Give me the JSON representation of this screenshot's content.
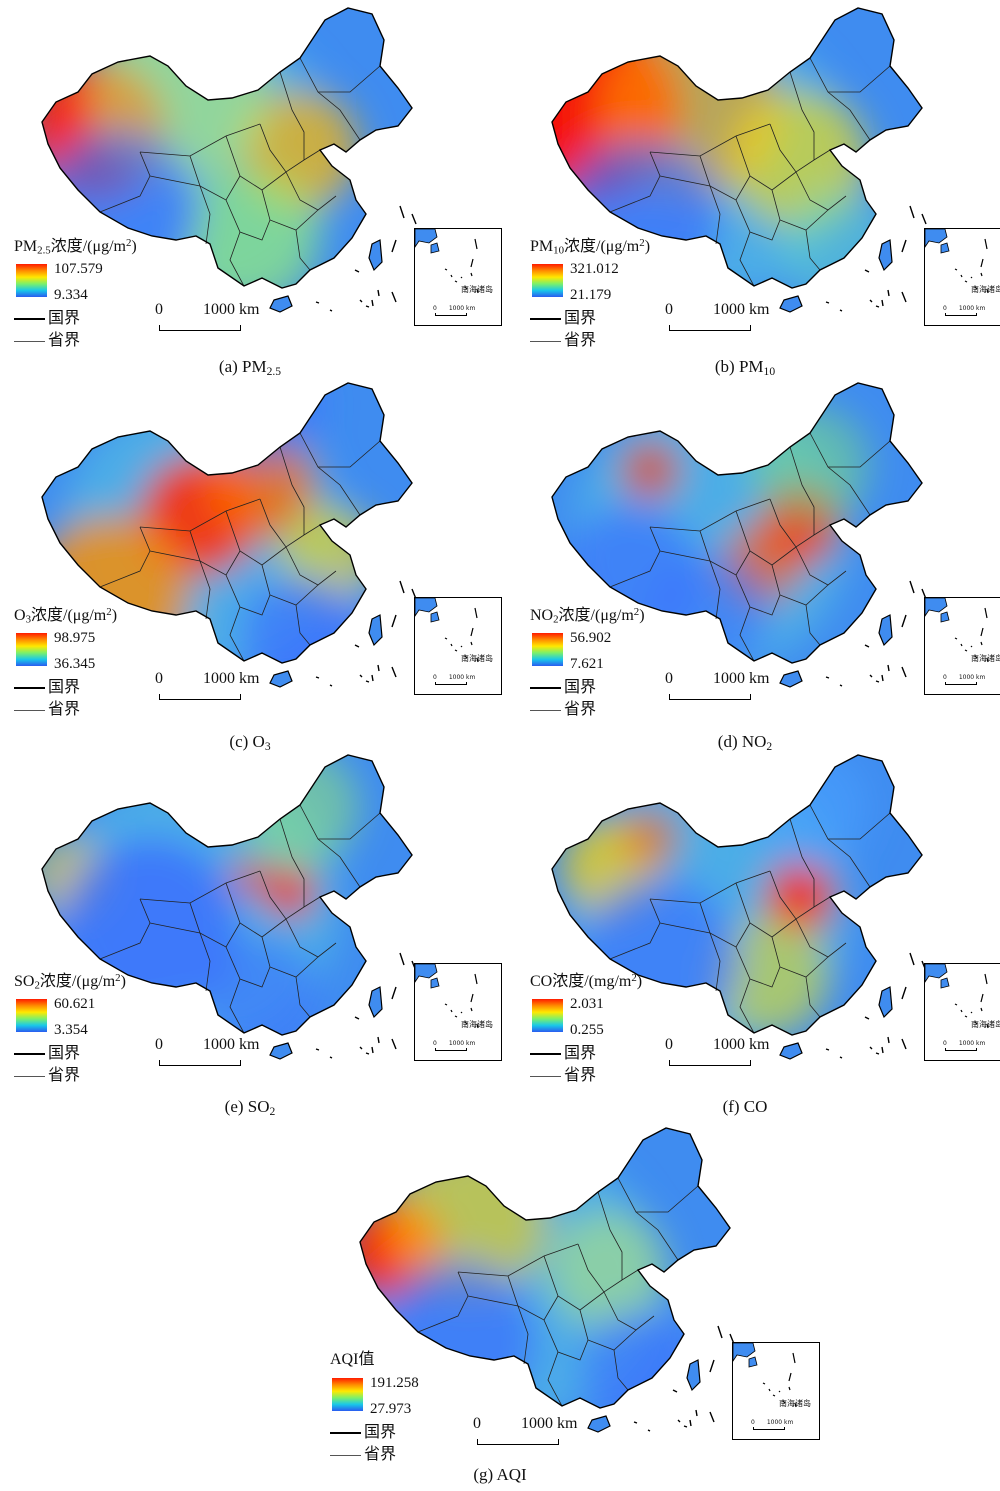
{
  "color_ramp": [
    "#ff1a00",
    "#ff8a00",
    "#ffe800",
    "#7cf06a",
    "#19c8e8",
    "#2a5cf0"
  ],
  "legend_lines": {
    "national": "国界",
    "provincial": "省界"
  },
  "scale": {
    "zero": "0",
    "label": "1000 km"
  },
  "inset": {
    "label": "南海诸岛",
    "scale_zero": "0",
    "scale_label": "1000 km"
  },
  "panels": [
    {
      "id": "pm25",
      "title_main": "PM",
      "title_sub": "2.5",
      "title_unit": "浓度/(μg/m",
      "title_sup": "2",
      "title_close": ")",
      "max": "107.579",
      "min": "9.334",
      "caption_pre": "(a) PM",
      "caption_sub": "2.5",
      "caption_suf": ""
    },
    {
      "id": "pm10",
      "title_main": "PM",
      "title_sub": "10",
      "title_unit": "浓度/(μg/m",
      "title_sup": "2",
      "title_close": ")",
      "max": "321.012",
      "min": "21.179",
      "caption_pre": "(b) PM",
      "caption_sub": "10",
      "caption_suf": ""
    },
    {
      "id": "o3",
      "title_main": "O",
      "title_sub": "3",
      "title_unit": "浓度/(μg/m",
      "title_sup": "2",
      "title_close": ")",
      "max": "98.975",
      "min": "36.345",
      "caption_pre": "(c) O",
      "caption_sub": "3",
      "caption_suf": ""
    },
    {
      "id": "no2",
      "title_main": "NO",
      "title_sub": "2",
      "title_unit": "浓度/(μg/m",
      "title_sup": "2",
      "title_close": ")",
      "max": "56.902",
      "min": "7.621",
      "caption_pre": "(d) NO",
      "caption_sub": "2",
      "caption_suf": ""
    },
    {
      "id": "so2",
      "title_main": "SO",
      "title_sub": "2",
      "title_unit": "浓度/(μg/m",
      "title_sup": "2",
      "title_close": ")",
      "max": "60.621",
      "min": "3.354",
      "caption_pre": "(e) SO",
      "caption_sub": "2",
      "caption_suf": ""
    },
    {
      "id": "co",
      "title_main": "CO",
      "title_sub": "",
      "title_unit": "浓度/(mg/m",
      "title_sup": "2",
      "title_close": ")",
      "max": "2.031",
      "min": "0.255",
      "caption_pre": "(f) CO",
      "caption_sub": "",
      "caption_suf": ""
    },
    {
      "id": "aqi",
      "title_main": "AQI值",
      "title_sub": "",
      "title_unit": "",
      "title_sup": "",
      "title_close": "",
      "max": "191.258",
      "min": "27.973",
      "caption_pre": "(g) AQI",
      "caption_sub": "",
      "caption_suf": ""
    }
  ]
}
